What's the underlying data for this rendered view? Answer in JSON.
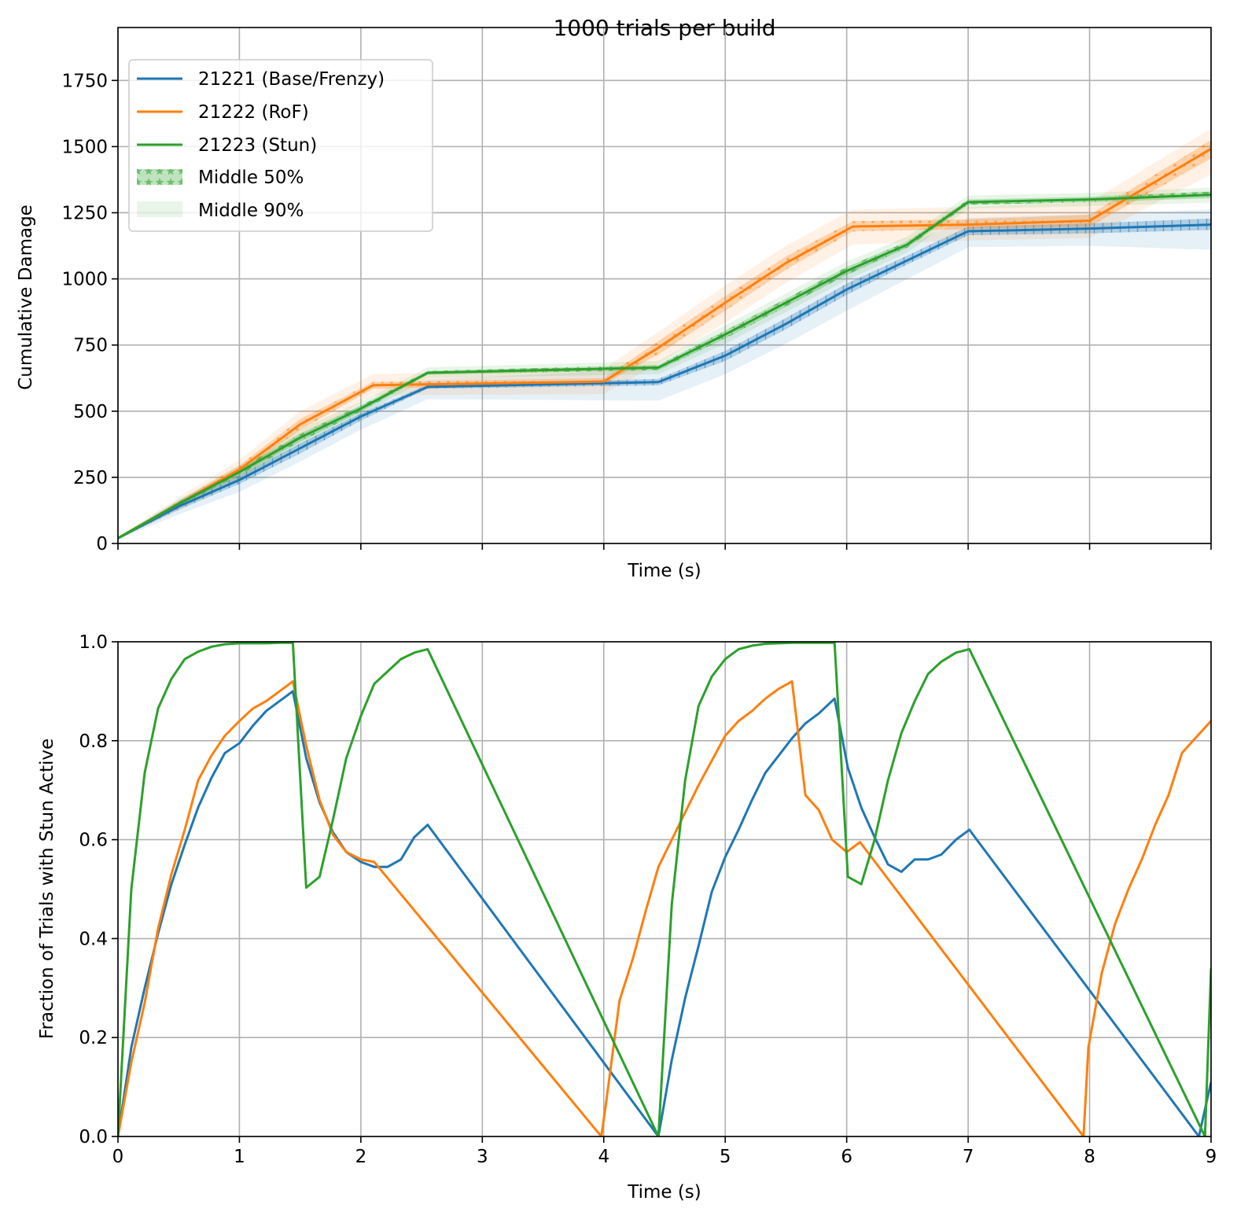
{
  "chart_data": [
    {
      "type": "line",
      "title": "1000 trials per build",
      "xlabel": "Time (s)",
      "ylabel": "Cumulative Damage",
      "xlim": [
        0,
        9
      ],
      "ylim": [
        0,
        1950
      ],
      "xticks": [
        0,
        1,
        2,
        3,
        4,
        5,
        6,
        7,
        8,
        9
      ],
      "show_xtick_labels": false,
      "yticks": [
        0,
        250,
        500,
        750,
        1000,
        1250,
        1500,
        1750
      ],
      "grid": true,
      "legend_position": "top-left",
      "legend": [
        "21221 (Base/Frenzy)",
        "21222 (RoF)",
        "21223 (Stun)",
        "Middle 50%",
        "Middle 90%"
      ],
      "series": [
        {
          "name": "21221 (Base/Frenzy)",
          "color": "#1f77b4",
          "hatch": "vertical",
          "x": [
            0,
            0.5,
            1,
            1.5,
            2,
            2.55,
            4.45,
            5,
            5.5,
            6,
            6.5,
            7,
            8,
            9
          ],
          "median": [
            20,
            140,
            240,
            360,
            480,
            592,
            610,
            710,
            830,
            960,
            1070,
            1180,
            1190,
            1205
          ],
          "q25": [
            18,
            128,
            225,
            340,
            465,
            585,
            598,
            690,
            810,
            940,
            1055,
            1165,
            1172,
            1185
          ],
          "q75": [
            22,
            150,
            258,
            378,
            492,
            600,
            622,
            728,
            852,
            982,
            1088,
            1198,
            1210,
            1228
          ],
          "q05": [
            15,
            110,
            195,
            310,
            430,
            545,
            540,
            640,
            755,
            880,
            1000,
            1120,
            1125,
            1110
          ],
          "q95": [
            25,
            165,
            280,
            410,
            520,
            620,
            660,
            780,
            900,
            1030,
            1130,
            1230,
            1245,
            1262
          ]
        },
        {
          "name": "21222 (RoF)",
          "color": "#ff7f0e",
          "hatch": "dotted",
          "x": [
            0,
            0.5,
            1,
            1.5,
            2.1,
            4,
            4.45,
            5,
            5.5,
            6.05,
            7,
            8,
            9
          ],
          "median": [
            20,
            150,
            280,
            450,
            598,
            612,
            740,
            910,
            1060,
            1198,
            1205,
            1220,
            1492
          ],
          "q25": [
            18,
            142,
            265,
            430,
            585,
            602,
            715,
            880,
            1035,
            1180,
            1188,
            1198,
            1455
          ],
          "q75": [
            22,
            160,
            295,
            470,
            610,
            625,
            765,
            935,
            1085,
            1218,
            1225,
            1242,
            1525
          ],
          "q05": [
            15,
            125,
            240,
            395,
            560,
            565,
            680,
            835,
            985,
            1130,
            1145,
            1155,
            1395
          ],
          "q95": [
            25,
            175,
            315,
            500,
            640,
            660,
            800,
            975,
            1125,
            1262,
            1272,
            1290,
            1568
          ]
        },
        {
          "name": "21223 (Stun)",
          "color": "#2ca02c",
          "hatch": "star",
          "x": [
            0,
            0.5,
            1,
            1.5,
            2,
            2.55,
            4.45,
            5,
            5.5,
            6,
            6.5,
            7,
            8,
            9
          ],
          "median": [
            20,
            150,
            270,
            400,
            510,
            645,
            665,
            790,
            910,
            1030,
            1130,
            1290,
            1300,
            1318
          ],
          "q25": [
            18,
            142,
            258,
            385,
            498,
            638,
            655,
            775,
            895,
            1015,
            1118,
            1280,
            1290,
            1305
          ],
          "q75": [
            22,
            158,
            282,
            415,
            522,
            652,
            675,
            805,
            925,
            1045,
            1142,
            1300,
            1310,
            1330
          ],
          "q05": [
            15,
            135,
            245,
            368,
            485,
            625,
            640,
            755,
            875,
            995,
            1100,
            1265,
            1275,
            1288
          ],
          "q95": [
            25,
            165,
            295,
            432,
            535,
            665,
            690,
            825,
            945,
            1065,
            1160,
            1315,
            1325,
            1345
          ]
        }
      ]
    },
    {
      "type": "line",
      "title": "",
      "xlabel": "Time (s)",
      "ylabel": "Fraction of Trials with Stun Active",
      "xlim": [
        0,
        9
      ],
      "ylim": [
        0,
        1
      ],
      "xticks": [
        0,
        1,
        2,
        3,
        4,
        5,
        6,
        7,
        8,
        9
      ],
      "yticks": [
        0.0,
        0.2,
        0.4,
        0.6,
        0.8,
        1.0
      ],
      "grid": true,
      "series": [
        {
          "name": "21221 (Base/Frenzy)",
          "color": "#1f77b4",
          "x": [
            0,
            0.11,
            0.22,
            0.33,
            0.44,
            0.55,
            0.66,
            0.77,
            0.88,
            1.0,
            1.11,
            1.22,
            1.33,
            1.44,
            1.55,
            1.66,
            1.77,
            1.88,
            2.0,
            2.11,
            2.22,
            2.33,
            2.44,
            2.55,
            4.45,
            4.56,
            4.67,
            4.78,
            4.89,
            5.0,
            5.11,
            5.22,
            5.33,
            5.44,
            5.55,
            5.66,
            5.77,
            5.9,
            6.01,
            6.12,
            6.23,
            6.34,
            6.45,
            6.56,
            6.67,
            6.78,
            6.9,
            7.01,
            8.9,
            9.0
          ],
          "y": [
            0,
            0.18,
            0.3,
            0.41,
            0.51,
            0.59,
            0.665,
            0.725,
            0.775,
            0.795,
            0.83,
            0.86,
            0.88,
            0.9,
            0.765,
            0.675,
            0.615,
            0.575,
            0.555,
            0.545,
            0.545,
            0.56,
            0.605,
            0.63,
            0,
            0.155,
            0.28,
            0.385,
            0.495,
            0.565,
            0.62,
            0.68,
            0.735,
            0.77,
            0.805,
            0.835,
            0.855,
            0.885,
            0.745,
            0.665,
            0.605,
            0.55,
            0.535,
            0.56,
            0.56,
            0.57,
            0.6,
            0.62,
            0,
            0.11
          ]
        },
        {
          "name": "21222 (RoF)",
          "color": "#ff7f0e",
          "x": [
            0,
            0.11,
            0.22,
            0.33,
            0.44,
            0.55,
            0.66,
            0.77,
            0.88,
            1.0,
            1.11,
            1.22,
            1.33,
            1.44,
            1.55,
            1.66,
            1.77,
            1.88,
            2.0,
            2.11,
            3.98,
            4.02,
            4.13,
            4.24,
            4.35,
            4.45,
            4.56,
            4.67,
            4.78,
            4.89,
            5.0,
            5.11,
            5.22,
            5.33,
            5.44,
            5.55,
            5.66,
            5.77,
            5.88,
            6.0,
            6.11,
            7.95,
            7.99,
            8.1,
            8.21,
            8.32,
            8.43,
            8.54,
            8.65,
            8.76,
            8.87,
            9.0
          ],
          "y": [
            0,
            0.15,
            0.27,
            0.42,
            0.53,
            0.62,
            0.72,
            0.77,
            0.81,
            0.84,
            0.865,
            0.88,
            0.9,
            0.92,
            0.79,
            0.68,
            0.61,
            0.575,
            0.56,
            0.555,
            0,
            0.07,
            0.275,
            0.36,
            0.46,
            0.545,
            0.6,
            0.655,
            0.71,
            0.76,
            0.81,
            0.84,
            0.86,
            0.885,
            0.905,
            0.92,
            0.69,
            0.66,
            0.6,
            0.575,
            0.595,
            0,
            0.18,
            0.33,
            0.43,
            0.5,
            0.56,
            0.63,
            0.69,
            0.775,
            0.805,
            0.84
          ]
        },
        {
          "name": "21223 (Stun)",
          "color": "#2ca02c",
          "x": [
            0,
            0.11,
            0.22,
            0.33,
            0.44,
            0.55,
            0.66,
            0.77,
            0.88,
            1.0,
            1.11,
            1.22,
            1.33,
            1.44,
            1.55,
            1.66,
            1.77,
            1.88,
            2.0,
            2.11,
            2.22,
            2.33,
            2.44,
            2.55,
            4.45,
            4.56,
            4.67,
            4.78,
            4.89,
            5.0,
            5.11,
            5.22,
            5.33,
            5.44,
            5.55,
            5.66,
            5.77,
            5.9,
            6.01,
            6.12,
            6.23,
            6.34,
            6.45,
            6.56,
            6.67,
            6.78,
            6.9,
            7.01,
            8.95,
            9.0
          ],
          "y": [
            0,
            0.5,
            0.735,
            0.865,
            0.925,
            0.965,
            0.98,
            0.99,
            0.995,
            0.997,
            0.997,
            0.997,
            0.998,
            0.998,
            0.503,
            0.525,
            0.64,
            0.765,
            0.85,
            0.915,
            0.94,
            0.965,
            0.978,
            0.985,
            0,
            0.47,
            0.72,
            0.87,
            0.93,
            0.965,
            0.985,
            0.992,
            0.996,
            0.997,
            0.998,
            0.998,
            0.998,
            0.998,
            0.525,
            0.51,
            0.6,
            0.72,
            0.815,
            0.88,
            0.935,
            0.96,
            0.978,
            0.985,
            0,
            0.34
          ]
        }
      ]
    }
  ]
}
